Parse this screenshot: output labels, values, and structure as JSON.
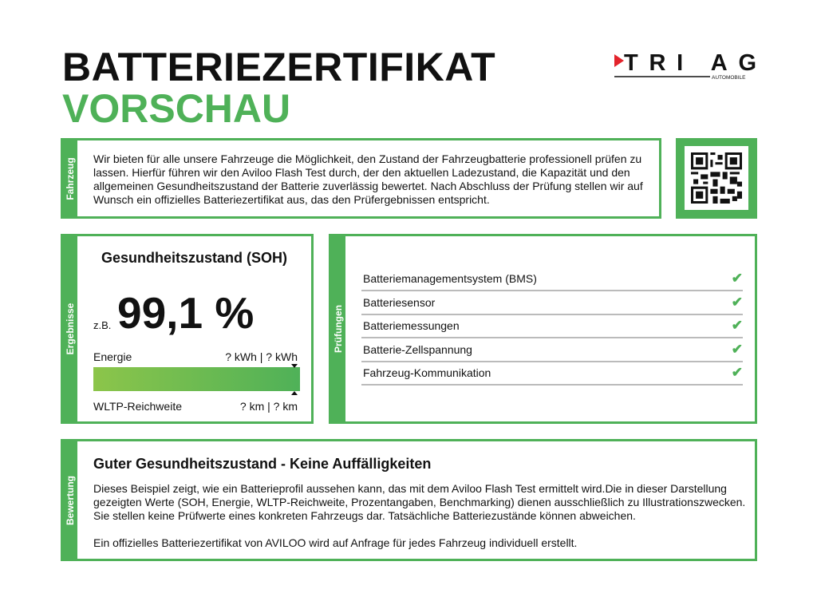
{
  "header": {
    "title": "BATTERIEZERTIFIKAT",
    "subtitle": "VORSCHAU"
  },
  "logo": {
    "name": "TRI AG",
    "tagline": "AUTOMOBILE",
    "accent": "#e3232b"
  },
  "colors": {
    "green": "#4fb158",
    "text": "#111111"
  },
  "fahrzeug": {
    "label": "Fahrzeug",
    "text": "Wir bieten für alle unsere Fahrzeuge die Möglichkeit, den Zustand der Fahrzeugbatterie professionell prüfen zu lassen. Hierfür führen wir den Aviloo Flash Test durch, der den aktuellen Ladezustand, die Kapazität und den allgemeinen Gesundheitszustand der Batterie zuverlässig bewertet. Nach Abschluss der Prüfung stellen wir auf Wunsch ein offizielles Batteriezertifikat aus, das den Prüfergebnissen entspricht."
  },
  "qr": {
    "icon": "qr-code-icon"
  },
  "ergebnisse": {
    "label": "Ergebnisse",
    "title": "Gesundheitszustand (SOH)",
    "prefix": "z.B.",
    "value": "99,1 %",
    "energie_label": "Energie",
    "energie_value": "? kWh | ? kWh",
    "range_label": "WLTP-Reichweite",
    "range_value": "? km | ? km",
    "bar_fill": 1.0
  },
  "pruefungen": {
    "label": "Prüfungen",
    "items": [
      {
        "label": "Batteriemanagementsystem (BMS)",
        "status": "check-icon"
      },
      {
        "label": "Batteriesensor",
        "status": "check-icon"
      },
      {
        "label": "Batteriemessungen",
        "status": "check-icon"
      },
      {
        "label": "Batterie-Zellspannung",
        "status": "check-icon"
      },
      {
        "label": "Fahrzeug-Kommunikation",
        "status": "check-icon"
      }
    ]
  },
  "bewertung": {
    "label": "Bewertung",
    "title": "Guter Gesundheitszustand - Keine Auffälligkeiten",
    "text1": "Dieses Beispiel zeigt, wie ein Batterieprofil aussehen kann, das mit dem Aviloo Flash Test ermittelt wird.Die in dieser Darstellung gezeigten Werte (SOH, Energie, WLTP-Reichweite, Prozentangaben, Benchmarking) dienen ausschließlich zu Illustrationszwecken. Sie stellen keine Prüfwerte eines konkreten Fahrzeugs dar. Tatsächliche Batteriezustände können abweichen.",
    "text2": "Ein offizielles Batteriezertifikat von AVILOO wird auf Anfrage für jedes Fahrzeug individuell erstellt."
  }
}
